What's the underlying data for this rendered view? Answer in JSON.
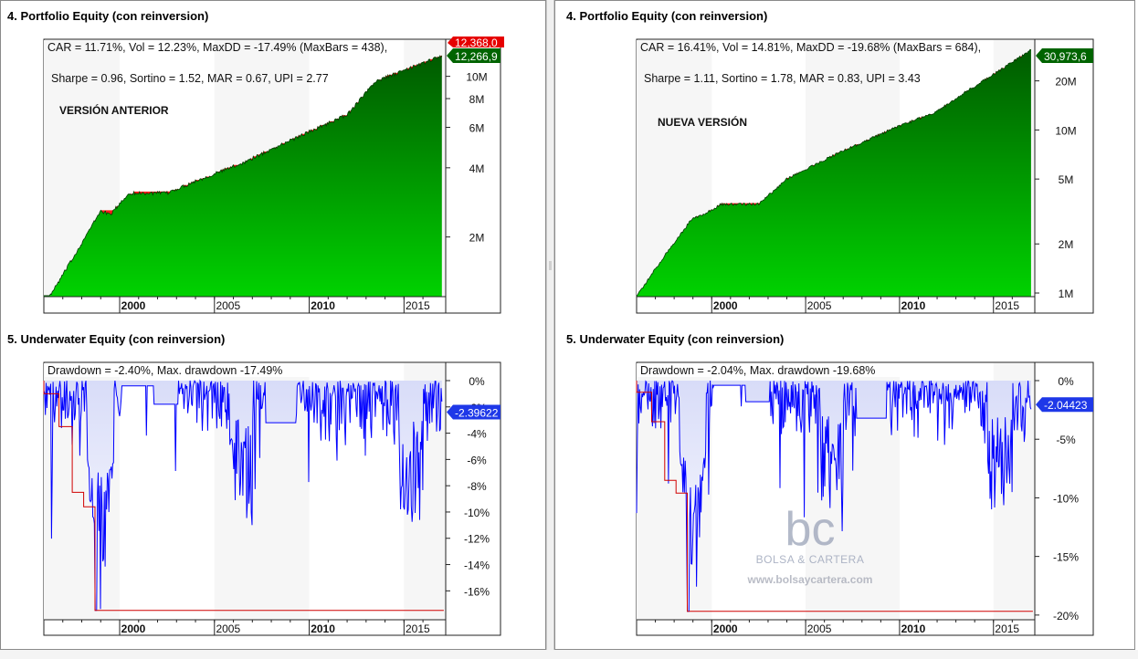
{
  "colors": {
    "equity_top": "#005a00",
    "equity_bottom": "#00d200",
    "drawdown_red": "#ff1a1a",
    "underwater_blue": "#0000ff",
    "underwater_fill_top": "#d8dcf8",
    "plot_bg_a": "#f6f6f6",
    "plot_bg_b": "#ffffff",
    "last_equity_label_bg": "#006400",
    "last_dd_label_bg": "#1e38e8",
    "minmax_label_bg": "#e60000"
  },
  "panels": [
    {
      "id": "left",
      "equity_title": "4. Portfolio Equity (con reinversion)",
      "equity_stats_line1": "CAR = 11.71%, Vol = 12.23%, MaxDD = -17.49% (MaxBars = 438),",
      "equity_stats_line2": "Sharpe = 0.96, Sortino = 1.52, MAR = 0.67, UPI = 2.77",
      "version_label": "VERSIÓN ANTERIOR",
      "equity_last_value": "12,266,9",
      "equity_upper_value": "12,368,0",
      "underwater_title": "5. Underwater Equity (con reinversion)",
      "underwater_stats": "Drawdown = -2.40%,    Max. drawdown -17.49%",
      "underwater_last_value": "-2.39622",
      "watermark": null,
      "chart_data": {
        "type": "area",
        "series": [
          {
            "values": [
              1.0,
              1.6,
              2.6,
              2.5,
              3.1,
              3.1,
              3.5,
              4.2,
              5.5,
              6.8,
              9.5,
              11.4,
              12.27
            ]
          }
        ],
        "x": [
          1995.5,
          1997,
          1998.5,
          1999,
          2000,
          2002,
          2003.5,
          2006,
          2009,
          2011.5,
          2013,
          2015.5,
          2016.5
        ],
        "y_scale": "log",
        "ylim": [
          1.1,
          14.5
        ],
        "y_tick_labels": [
          "2M",
          "4M",
          "6M",
          "8M",
          "10M"
        ],
        "x_tick_labels": [
          "2000",
          "2005",
          "2010",
          "2015"
        ],
        "x_range": [
          1995.5,
          2016.7
        ],
        "max_drawdown_pct": -17.49
      },
      "underwater_chart_data": {
        "type": "area",
        "ylim": [
          -18.2,
          0
        ],
        "y_tick_labels": [
          "0%",
          "-2%",
          "-4%",
          "-6%",
          "-8%",
          "-10%",
          "-12%",
          "-14%",
          "-16%"
        ],
        "x_tick_labels": [
          "2000",
          "2005",
          "2010",
          "2015"
        ],
        "x_range": [
          1995.5,
          2016.7
        ],
        "max_drawdown_pct": -17.49,
        "last_drawdown_pct": -2.4
      }
    },
    {
      "id": "right",
      "equity_title": "4. Portfolio Equity (con reinversion)",
      "equity_stats_line1": "CAR = 16.41%, Vol = 14.81%, MaxDD = -19.68% (MaxBars = 684),",
      "equity_stats_line2": "Sharpe = 1.11, Sortino = 1.78, MAR = 0.83, UPI = 3.43",
      "version_label": "NUEVA VERSIÓN",
      "equity_last_value": "30,973,6",
      "equity_upper_value": "",
      "underwater_title": "5. Underwater Equity (con reinversion)",
      "underwater_stats": "Drawdown = -2.04%,    Max. drawdown -19.68%",
      "underwater_last_value": "-2.04423",
      "watermark": {
        "logo_text": "bc",
        "brand": "BOLSA & CARTERA",
        "url": "www.bolsaycartera.com"
      },
      "chart_data": {
        "type": "area",
        "series": [
          {
            "values": [
              0.95,
              1.7,
              2.9,
              3.0,
              3.5,
              3.5,
              5.0,
              7.0,
              10.0,
              13.0,
              17.0,
              26.0,
              31.0
            ]
          }
        ],
        "x": [
          1995.5,
          1997,
          1998.5,
          1999,
          2000,
          2002,
          2003.5,
          2006,
          2009,
          2011.5,
          2013,
          2015.5,
          2016.5
        ],
        "y_scale": "log",
        "ylim": [
          0.95,
          36
        ],
        "y_tick_labels": [
          "1M",
          "2M",
          "5M",
          "10M",
          "20M"
        ],
        "x_tick_labels": [
          "2000",
          "2005",
          "2010",
          "2015"
        ],
        "x_range": [
          1995.5,
          2016.7
        ],
        "max_drawdown_pct": -19.68
      },
      "underwater_chart_data": {
        "type": "area",
        "ylim": [
          -20.4,
          0
        ],
        "y_tick_labels": [
          "0%",
          "-5%",
          "-10%",
          "-15%",
          "-20%"
        ],
        "x_tick_labels": [
          "2000",
          "2005",
          "2010",
          "2015"
        ],
        "x_range": [
          1995.5,
          2016.7
        ],
        "max_drawdown_pct": -19.68,
        "last_drawdown_pct": -2.04
      }
    }
  ]
}
